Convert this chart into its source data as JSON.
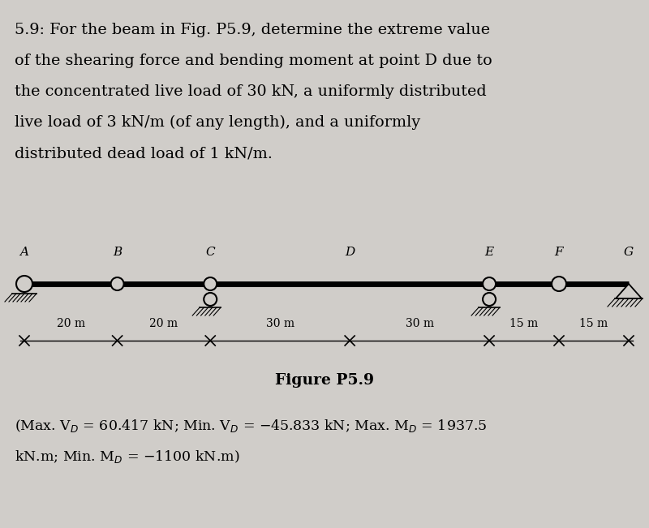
{
  "bg_color": "#d0cdc9",
  "text_color": "#000000",
  "problem_text_lines": [
    "5.9: For the beam in Fig. P5.9, determine the extreme value",
    "of the shearing force and bending moment at point D due to",
    "the concentrated live load of 30 kN, a uniformly distributed",
    "live load of 3 kN/m (of any length), and a uniformly",
    "distributed dead load of 1 kN/m."
  ],
  "figure_caption": "Figure P5.9",
  "spans_m": [
    20,
    20,
    30,
    30,
    15,
    15
  ],
  "span_labels": [
    "20 m",
    "20 m",
    "30 m",
    "30 m",
    "15 m",
    "15 m"
  ],
  "node_labels": [
    "A",
    "B",
    "C",
    "D",
    "E",
    "F",
    "G"
  ]
}
